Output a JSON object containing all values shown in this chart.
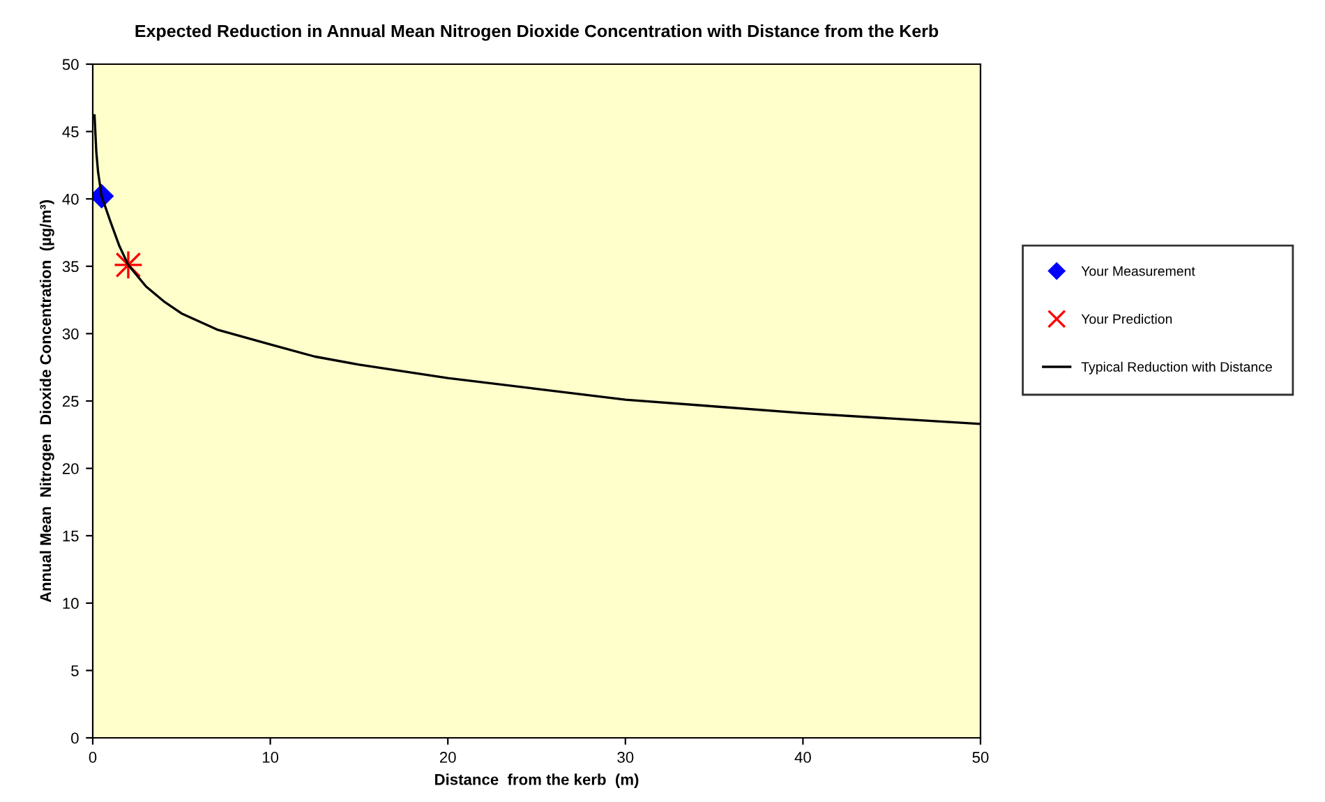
{
  "chart_data": {
    "type": "line",
    "title": "Expected Reduction in Annual Mean Nitrogen Dioxide Concentration with Distance from the Kerb",
    "xlabel": "Distance  from the kerb  (m)",
    "ylabel": "Annual Mean  Nitrogen  Dioxide Concentration  (µg/m³)",
    "xlim": [
      0,
      50
    ],
    "xticks": [
      0,
      10,
      20,
      30,
      40,
      50
    ],
    "ylim": [
      0,
      50
    ],
    "yticks": [
      0,
      5,
      10,
      15,
      20,
      25,
      30,
      35,
      40,
      45,
      50
    ],
    "grid": false,
    "legend": "right",
    "series": [
      {
        "name": "Your Measurement",
        "type": "scatter",
        "marker": "diamond",
        "color": "#0000ff",
        "x": [
          0.5
        ],
        "values": [
          40.2
        ]
      },
      {
        "name": "Your Prediction",
        "type": "scatter",
        "marker": "cross",
        "color": "#ff0000",
        "x": [
          2
        ],
        "values": [
          35.1
        ]
      },
      {
        "name": "Typical Reduction with Distance",
        "marker": "none",
        "color": "#000000",
        "x": [
          0.1,
          0.2,
          0.3,
          0.5,
          1,
          1.5,
          2,
          3,
          4,
          5,
          7,
          10,
          12.5,
          15,
          20,
          25,
          30,
          35,
          40,
          45,
          50
        ],
        "values": [
          46.2,
          43.5,
          42,
          40.2,
          38.3,
          36.5,
          35.1,
          33.5,
          32.4,
          31.5,
          30.3,
          29.2,
          28.3,
          27.7,
          26.7,
          25.9,
          25.1,
          24.6,
          24.1,
          23.7,
          23.3
        ]
      }
    ]
  }
}
